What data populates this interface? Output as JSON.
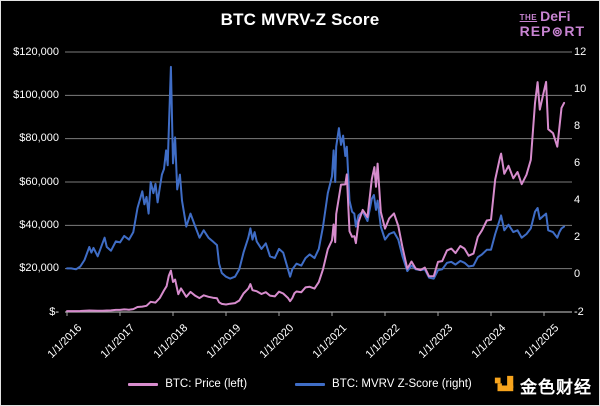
{
  "header": {
    "title": "BTC MVRV-Z Score",
    "logo": {
      "the": "THE",
      "defi": "DeFi",
      "rep": "REP",
      "rt": "RT",
      "color": "#c884d2"
    }
  },
  "watermark": {
    "text": "金色财经",
    "icon_color": "#f7a41d"
  },
  "chart_data": {
    "type": "line",
    "title": "BTC MVRV-Z Score",
    "background": "#000000",
    "gridline_color": "#7d7d7d",
    "axis_line_color": "#a6a6a6",
    "axis_text_color": "#ffffff",
    "grid": true,
    "legend_position": "bottom",
    "x_ticks": [
      "1/1/2016",
      "1/1/2017",
      "1/1/2018",
      "1/1/2019",
      "1/1/2020",
      "1/1/2021",
      "1/1/2022",
      "1/1/2023",
      "1/1/2024",
      "1/1/2025"
    ],
    "left_axis": {
      "labels": [
        "$-",
        "$20,000",
        "$40,000",
        "$60,000",
        "$80,000",
        "$100,000",
        "$120,000"
      ],
      "min": 0,
      "max": 120000,
      "step": 20000
    },
    "right_axis": {
      "labels": [
        "-2",
        "0",
        "2",
        "4",
        "6",
        "8",
        "10",
        "12"
      ],
      "min": -2,
      "max": 12,
      "step": 2
    },
    "legend": [
      {
        "label": "BTC: Price (left)",
        "color": "#d78ccd"
      },
      {
        "label": "BTC: MVRV Z-Score (right)",
        "color": "#3f6dc6"
      }
    ],
    "series": [
      {
        "name": "BTC: MVRV Z-Score (right)",
        "axis": "right",
        "color": "#3f6dc6",
        "x": [
          2016.0,
          2016.08,
          2016.17,
          2016.25,
          2016.33,
          2016.42,
          2016.46,
          2016.5,
          2016.58,
          2016.67,
          2016.71,
          2016.75,
          2016.83,
          2016.92,
          2017.0,
          2017.08,
          2017.17,
          2017.25,
          2017.33,
          2017.42,
          2017.46,
          2017.5,
          2017.54,
          2017.58,
          2017.63,
          2017.67,
          2017.71,
          2017.75,
          2017.79,
          2017.83,
          2017.87,
          2017.9,
          2017.92,
          2017.96,
          2018.0,
          2018.04,
          2018.08,
          2018.13,
          2018.17,
          2018.25,
          2018.33,
          2018.42,
          2018.5,
          2018.58,
          2018.67,
          2018.75,
          2018.83,
          2018.87,
          2018.92,
          2019.0,
          2019.08,
          2019.17,
          2019.25,
          2019.33,
          2019.42,
          2019.46,
          2019.5,
          2019.54,
          2019.58,
          2019.67,
          2019.75,
          2019.83,
          2019.92,
          2020.0,
          2020.08,
          2020.17,
          2020.21,
          2020.25,
          2020.33,
          2020.42,
          2020.5,
          2020.58,
          2020.67,
          2020.75,
          2020.83,
          2020.92,
          2021.0,
          2021.03,
          2021.06,
          2021.08,
          2021.13,
          2021.17,
          2021.21,
          2021.25,
          2021.28,
          2021.33,
          2021.38,
          2021.42,
          2021.45,
          2021.5,
          2021.58,
          2021.67,
          2021.75,
          2021.79,
          2021.83,
          2021.86,
          2021.92,
          2022.0,
          2022.08,
          2022.17,
          2022.25,
          2022.33,
          2022.42,
          2022.5,
          2022.58,
          2022.67,
          2022.75,
          2022.83,
          2022.92,
          2023.0,
          2023.08,
          2023.17,
          2023.25,
          2023.33,
          2023.42,
          2023.5,
          2023.58,
          2023.67,
          2023.75,
          2023.83,
          2023.92,
          2024.0,
          2024.08,
          2024.17,
          2024.19,
          2024.25,
          2024.33,
          2024.42,
          2024.5,
          2024.58,
          2024.67,
          2024.75,
          2024.83,
          2024.88,
          2024.92,
          2025.0,
          2025.04,
          2025.08,
          2025.17,
          2025.25,
          2025.29,
          2025.33,
          2025.38
        ],
        "y": [
          0.35,
          0.35,
          0.3,
          0.45,
          0.8,
          1.5,
          1.2,
          1.45,
          1.0,
          1.7,
          2.0,
          1.5,
          1.3,
          1.8,
          1.75,
          2.1,
          1.9,
          2.3,
          3.6,
          4.5,
          3.8,
          4.2,
          3.3,
          5.0,
          4.4,
          4.9,
          3.9,
          4.7,
          5.4,
          5.7,
          6.7,
          5.9,
          7.8,
          11.2,
          6.0,
          7.4,
          4.6,
          5.4,
          4.0,
          2.6,
          3.3,
          2.6,
          2.0,
          2.4,
          2.0,
          1.8,
          1.6,
          0.6,
          0.1,
          -0.1,
          -0.2,
          -0.1,
          0.3,
          1.2,
          2.0,
          2.5,
          1.9,
          2.3,
          1.8,
          1.4,
          1.7,
          1.0,
          0.9,
          1.4,
          1.2,
          0.3,
          -0.1,
          0.3,
          0.6,
          0.5,
          0.9,
          1.1,
          0.9,
          1.4,
          2.6,
          4.4,
          5.3,
          6.7,
          5.0,
          6.9,
          7.9,
          7.0,
          7.5,
          6.4,
          6.9,
          4.0,
          3.4,
          3.3,
          2.6,
          3.2,
          3.4,
          2.9,
          4.1,
          4.3,
          3.5,
          4.0,
          2.6,
          1.9,
          2.2,
          2.3,
          1.9,
          1.0,
          0.2,
          0.5,
          0.3,
          0.25,
          0.3,
          -0.15,
          -0.2,
          0.25,
          0.3,
          0.65,
          0.7,
          0.55,
          0.75,
          0.65,
          0.45,
          0.5,
          0.95,
          1.1,
          1.35,
          1.35,
          2.2,
          3.0,
          3.2,
          2.4,
          2.7,
          2.3,
          2.4,
          2.0,
          2.2,
          2.5,
          3.4,
          3.6,
          3.0,
          3.2,
          3.3,
          2.4,
          2.3,
          2.0,
          2.3,
          2.5,
          2.6
        ]
      },
      {
        "name": "BTC: Price (left)",
        "axis": "left",
        "color": "#d78ccd",
        "x": [
          2016.0,
          2016.08,
          2016.17,
          2016.25,
          2016.33,
          2016.42,
          2016.5,
          2016.58,
          2016.67,
          2016.75,
          2016.83,
          2016.92,
          2017.0,
          2017.08,
          2017.17,
          2017.25,
          2017.33,
          2017.42,
          2017.5,
          2017.58,
          2017.67,
          2017.75,
          2017.83,
          2017.88,
          2017.92,
          2017.96,
          2018.0,
          2018.04,
          2018.1,
          2018.15,
          2018.25,
          2018.33,
          2018.42,
          2018.5,
          2018.58,
          2018.67,
          2018.75,
          2018.83,
          2018.87,
          2018.92,
          2019.0,
          2019.08,
          2019.17,
          2019.25,
          2019.33,
          2019.42,
          2019.46,
          2019.5,
          2019.58,
          2019.67,
          2019.75,
          2019.83,
          2019.92,
          2020.0,
          2020.08,
          2020.17,
          2020.21,
          2020.25,
          2020.29,
          2020.33,
          2020.42,
          2020.5,
          2020.58,
          2020.67,
          2020.75,
          2020.83,
          2020.92,
          2021.0,
          2021.03,
          2021.06,
          2021.08,
          2021.17,
          2021.25,
          2021.28,
          2021.33,
          2021.38,
          2021.42,
          2021.45,
          2021.5,
          2021.58,
          2021.67,
          2021.75,
          2021.8,
          2021.83,
          2021.86,
          2021.92,
          2022.0,
          2022.08,
          2022.17,
          2022.25,
          2022.33,
          2022.42,
          2022.5,
          2022.58,
          2022.67,
          2022.75,
          2022.83,
          2022.92,
          2023.0,
          2023.08,
          2023.17,
          2023.25,
          2023.33,
          2023.42,
          2023.5,
          2023.58,
          2023.67,
          2023.75,
          2023.83,
          2023.92,
          2024.0,
          2024.08,
          2024.17,
          2024.19,
          2024.25,
          2024.33,
          2024.42,
          2024.5,
          2024.58,
          2024.67,
          2024.75,
          2024.83,
          2024.88,
          2024.92,
          2025.0,
          2025.04,
          2025.08,
          2025.17,
          2025.25,
          2025.29,
          2025.33,
          2025.38
        ],
        "y": [
          434,
          437,
          416,
          448,
          531,
          673,
          658,
          573,
          609,
          697,
          743,
          963,
          970,
          1190,
          1080,
          1350,
          2300,
          2480,
          2880,
          4700,
          4340,
          6470,
          9950,
          11900,
          16700,
          19100,
          13850,
          15000,
          8200,
          10900,
          7000,
          9300,
          7500,
          6400,
          7730,
          7030,
          6600,
          6320,
          4500,
          3740,
          3450,
          3850,
          4100,
          5320,
          8550,
          10820,
          12900,
          10080,
          9590,
          8290,
          9150,
          7550,
          7190,
          9350,
          8550,
          6440,
          5000,
          6420,
          8650,
          9450,
          9140,
          11350,
          11650,
          10780,
          13800,
          19700,
          29000,
          33100,
          40400,
          32200,
          45200,
          58800,
          58900,
          63500,
          37300,
          34700,
          35000,
          31800,
          41500,
          47100,
          43800,
          61300,
          66900,
          57800,
          68500,
          46200,
          38500,
          43200,
          45500,
          39700,
          29800,
          20000,
          23300,
          20050,
          19400,
          20500,
          16500,
          16550,
          23100,
          23500,
          28450,
          29250,
          27200,
          30450,
          29250,
          26000,
          26950,
          34650,
          37700,
          42250,
          42550,
          61150,
          71300,
          73100,
          63800,
          67500,
          61700,
          64600,
          59000,
          63350,
          70200,
          96400,
          106100,
          93400,
          102100,
          106200,
          84350,
          82550,
          76300,
          85200,
          94200,
          96500
        ]
      }
    ]
  }
}
